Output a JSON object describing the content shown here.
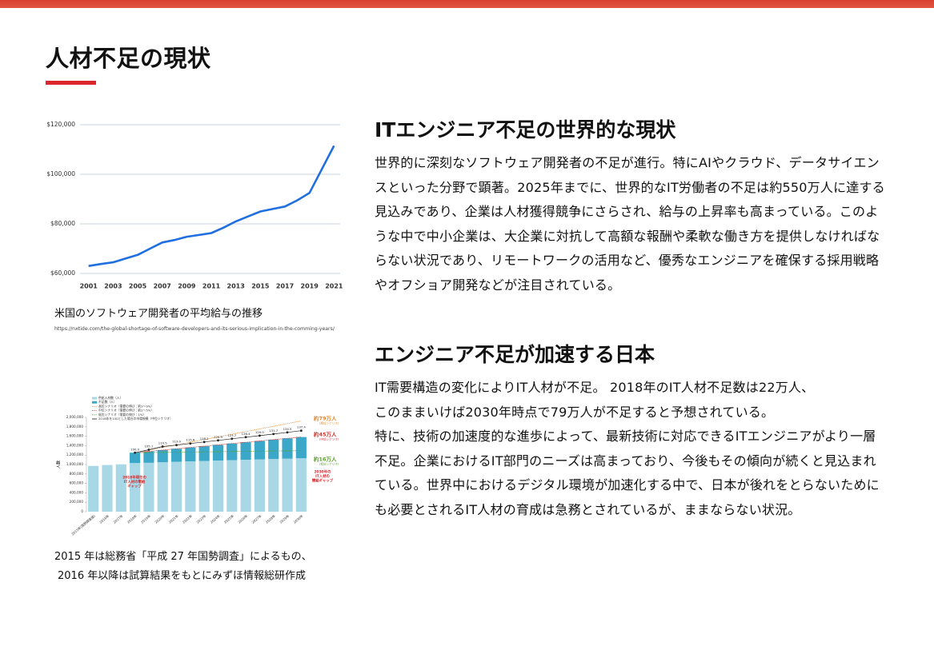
{
  "header": {
    "title": "人材不足の現状"
  },
  "figures": [
    {
      "chart": {
        "type": "line",
        "x": [
          2001,
          2002,
          2003,
          2004,
          2005,
          2006,
          2007,
          2008,
          2009,
          2010,
          2011,
          2012,
          2013,
          2014,
          2015,
          2016,
          2017,
          2018,
          2019,
          2020,
          2021
        ],
        "values": [
          63000,
          63800,
          64500,
          66000,
          67500,
          70000,
          72500,
          73500,
          74800,
          75500,
          76300,
          78500,
          81000,
          83000,
          85000,
          86000,
          87000,
          89500,
          92500,
          102000,
          111500
        ],
        "color": "#1f6fe0",
        "xlim": [
          2000.3,
          2021.5
        ],
        "xticks": [
          2001,
          2003,
          2005,
          2007,
          2009,
          2011,
          2013,
          2015,
          2017,
          2019,
          2021
        ],
        "ylim": [
          60000,
          120000
        ],
        "yticks": [
          {
            "value": 60000,
            "label": "$60,000"
          },
          {
            "value": 80000,
            "label": "$80,000"
          },
          {
            "value": 100000,
            "label": "$100,000"
          },
          {
            "value": 120000,
            "label": "$120,000"
          }
        ],
        "grid": true
      },
      "caption": "米国のソフトウェア開発者の平均給与の推移",
      "source": "https://nxtide.com/the-global-shortage-of-software-developers-and-its-serious-implication-in-the-comming-years/"
    },
    {
      "chart": {
        "type": "bar",
        "categories": [
          "2015年(国勢調査値)",
          "2016年",
          "2017年",
          "2018年",
          "2019年",
          "2020年",
          "2021年",
          "2022年",
          "2023年",
          "2024年",
          "2025年",
          "2026年",
          "2027年",
          "2028年",
          "2029年",
          "2030年"
        ],
        "series": [
          {
            "name": "供給人材数（人）",
            "type": "bar",
            "color": "#a8d8e6",
            "values": [
              970000,
              990000,
              1004000,
              1031000,
              1037000,
              1049000,
              1059000,
              1068000,
              1076000,
              1084000,
              1093000,
              1101000,
              1109000,
              1117000,
              1125000,
              1133000
            ]
          },
          {
            "name": "不足数（人）",
            "type": "bar",
            "color": "#3ba7c9",
            "values": [
              null,
              null,
              null,
              220000,
              242000,
              257000,
              275000,
              294000,
              313000,
              333000,
              352000,
              371000,
              391000,
              411000,
              430000,
              450000
            ]
          },
          {
            "name": "高位シナリオ（需要の伸び：約3～9%）",
            "type": "line",
            "style": "dotted",
            "color": "#e8862a",
            "values": [
              null,
              null,
              null,
              1251000,
              1307000,
              1363000,
              1419000,
              1475000,
              1531000,
              1587000,
              1643000,
              1699000,
              1755000,
              1811000,
              1867000,
              1923000
            ]
          },
          {
            "name": "中位シナリオ（需要の伸び：約2～5%）",
            "type": "line",
            "style": "dotted",
            "color": "#d9302c",
            "values": [
              null,
              null,
              null,
              1251000,
              1279000,
              1306000,
              1334000,
              1362000,
              1389000,
              1417000,
              1445000,
              1472000,
              1500000,
              1528000,
              1555000,
              1583000
            ]
          },
          {
            "name": "低位シナリオ（需要の伸び：1%）",
            "type": "line",
            "style": "dotted",
            "color": "#5aa02c",
            "values": [
              null,
              null,
              null,
              1251000,
              1254500,
              1258000,
              1261500,
              1265000,
              1268500,
              1272000,
              1275500,
              1279000,
              1282500,
              1286000,
              1289500,
              1293000
            ]
          },
          {
            "name": "2018年を100とした場合の市場規模（中位シナリオ）",
            "type": "line",
            "style": "solid",
            "marker": true,
            "axis": "y2",
            "color": "#222222",
            "values": [
              null,
              null,
              null,
              100,
              105.1,
              110.5,
              113,
              115.6,
              118.2,
              120.9,
              123.7,
              126.4,
              129,
              131.7,
              134.5,
              137.4
            ],
            "value_labels": [
              null,
              null,
              null,
              "100.0",
              "105.1",
              "110.5",
              "113.0",
              "115.6",
              "118.2",
              "120.9",
              "123.7",
              "126.4",
              "129.0",
              "131.7",
              "134.5",
              "137.4"
            ]
          }
        ],
        "ylabel": "人数",
        "ylim": [
          0,
          2000000
        ],
        "yticks": [
          {
            "value": 0,
            "label": "0"
          },
          {
            "value": 200000,
            "label": "200,000"
          },
          {
            "value": 400000,
            "label": "400,000"
          },
          {
            "value": 600000,
            "label": "600,000"
          },
          {
            "value": 800000,
            "label": "800,000"
          },
          {
            "value": 1000000,
            "label": "1,000,000"
          },
          {
            "value": 1200000,
            "label": "1,200,000"
          },
          {
            "value": 1400000,
            "label": "1,400,000"
          },
          {
            "value": 1600000,
            "label": "1,600,000"
          },
          {
            "value": 1800000,
            "label": "1,800,000"
          },
          {
            "value": 2000000,
            "label": "2,000,000"
          }
        ],
        "y2lim": [
          0,
          160
        ],
        "annotations": [
          {
            "text": "約79万人",
            "note": "(高位シナリオ)",
            "color": "#e8862a"
          },
          {
            "text": "約45万人",
            "note": "(中位シナリオ)",
            "color": "#d9302c"
          },
          {
            "text": "約16万人",
            "note": "(低位シナリオ)",
            "color": "#5aa02c"
          }
        ],
        "gap_labels": [
          "2018年現在の",
          "IT人材の需給",
          "ギャップ",
          "2030年の",
          "IT人材の",
          "需給ギャップ"
        ]
      },
      "caption": [
        "2015 年は総務省「平成 27 年国勢調査」によるもの、",
        "2016 年以降は試算結果をもとにみずほ情報総研作成"
      ]
    }
  ],
  "sections": [
    {
      "heading": "ITエンジニア不足の世界的な現状",
      "paragraphs": [
        "世界的に深刻なソフトウェア開発者の不足が進行。特にAIやクラウド、データサイエンスといった分野で顕著。2025年までに、世界的なIT労働者の不足は約550万人に達する見込みであり、企業は人材獲得競争にさらされ、給与の上昇率も高まっている。このような中で中小企業は、大企業に対抗して高額な報酬や柔軟な働き方を提供しなければならない状況であり、リモートワークの活用など、優秀なエンジニアを確保する採用戦略やオフショア開発などが注目されている。"
      ]
    },
    {
      "heading": "エンジニア不足が加速する日本",
      "paragraphs": [
        "IT需要構造の変化によりIT人材が不足。 2018年のIT人材不足数は22万人、",
        "このままいけば2030年時点で79万人が不足すると予想されている。",
        "特に、技術の加速度的な進歩によって、最新技術に対応できるITエンジニアがより一層不足。企業におけるIT部門のニーズは高まっており、今後もその傾向が続くと見込まれている。世界中におけるデジタル環境が加速化する中で、日本が後れをとらないためにも必要とされるIT人材の育成は急務とされているが、ままならない状況。"
      ]
    }
  ]
}
